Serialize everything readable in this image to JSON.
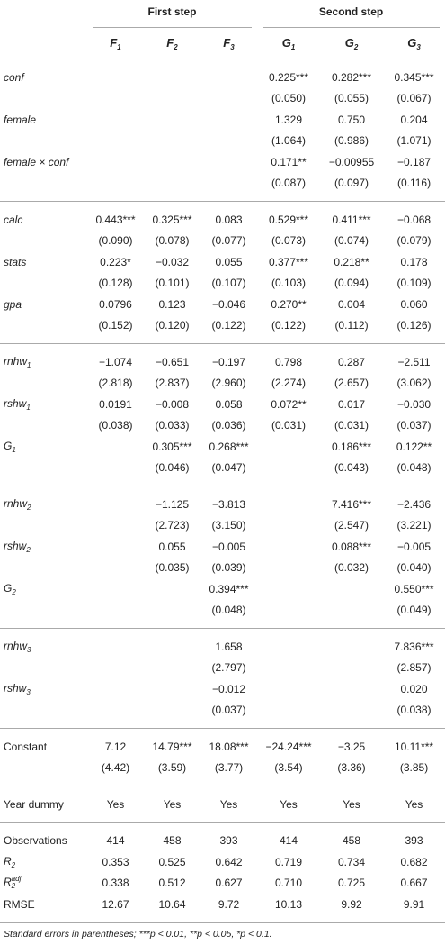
{
  "table": {
    "group_headers": [
      "First step",
      "Second step"
    ],
    "columns": [
      {
        "text": "F",
        "sub": "1"
      },
      {
        "text": "F",
        "sub": "2"
      },
      {
        "text": "F",
        "sub": "3"
      },
      {
        "text": "G",
        "sub": "1"
      },
      {
        "text": "G",
        "sub": "2"
      },
      {
        "text": "G",
        "sub": "3"
      }
    ],
    "sections": [
      {
        "rows": [
          {
            "label": {
              "text": "conf",
              "italic": true
            },
            "cells": [
              null,
              null,
              null,
              "0.225***",
              "0.282***",
              "0.345***"
            ]
          },
          {
            "label": null,
            "cells": [
              null,
              null,
              null,
              "(0.050)",
              "(0.055)",
              "(0.067)"
            ]
          },
          {
            "label": {
              "text": "female",
              "italic": true
            },
            "cells": [
              null,
              null,
              null,
              "1.329",
              "0.750",
              "0.204"
            ]
          },
          {
            "label": null,
            "cells": [
              null,
              null,
              null,
              "(1.064)",
              "(0.986)",
              "(1.071)"
            ]
          },
          {
            "label": {
              "text": "female × conf",
              "italic": true
            },
            "cells": [
              null,
              null,
              null,
              "0.171**",
              "−0.00955",
              "−0.187"
            ]
          },
          {
            "label": null,
            "cells": [
              null,
              null,
              null,
              "(0.087)",
              "(0.097)",
              "(0.116)"
            ]
          }
        ]
      },
      {
        "rows": [
          {
            "label": {
              "text": "calc",
              "italic": true
            },
            "cells": [
              "0.443***",
              "0.325***",
              "0.083",
              "0.529***",
              "0.411***",
              "−0.068"
            ]
          },
          {
            "label": null,
            "cells": [
              "(0.090)",
              "(0.078)",
              "(0.077)",
              "(0.073)",
              "(0.074)",
              "(0.079)"
            ]
          },
          {
            "label": {
              "text": "stats",
              "italic": true
            },
            "cells": [
              "0.223*",
              "−0.032",
              "0.055",
              "0.377***",
              "0.218**",
              "0.178"
            ]
          },
          {
            "label": null,
            "cells": [
              "(0.128)",
              "(0.101)",
              "(0.107)",
              "(0.103)",
              "(0.094)",
              "(0.109)"
            ]
          },
          {
            "label": {
              "text": "gpa",
              "italic": true
            },
            "cells": [
              "0.0796",
              "0.123",
              "−0.046",
              "0.270**",
              "0.004",
              "0.060"
            ]
          },
          {
            "label": null,
            "cells": [
              "(0.152)",
              "(0.120)",
              "(0.122)",
              "(0.122)",
              "(0.112)",
              "(0.126)"
            ]
          }
        ]
      },
      {
        "rows": [
          {
            "label": {
              "text": "rnhw",
              "sub": "1",
              "italic": true
            },
            "cells": [
              "−1.074",
              "−0.651",
              "−0.197",
              "0.798",
              "0.287",
              "−2.511"
            ]
          },
          {
            "label": null,
            "cells": [
              "(2.818)",
              "(2.837)",
              "(2.960)",
              "(2.274)",
              "(2.657)",
              "(3.062)"
            ]
          },
          {
            "label": {
              "text": "rshw",
              "sub": "1",
              "italic": true
            },
            "cells": [
              "0.0191",
              "−0.008",
              "0.058",
              "0.072**",
              "0.017",
              "−0.030"
            ]
          },
          {
            "label": null,
            "cells": [
              "(0.038)",
              "(0.033)",
              "(0.036)",
              "(0.031)",
              "(0.031)",
              "(0.037)"
            ]
          },
          {
            "label": {
              "text": "G",
              "sub": "1",
              "italic": true
            },
            "cells": [
              null,
              "0.305***",
              "0.268***",
              null,
              "0.186***",
              "0.122**"
            ]
          },
          {
            "label": null,
            "cells": [
              null,
              "(0.046)",
              "(0.047)",
              null,
              "(0.043)",
              "(0.048)"
            ]
          }
        ]
      },
      {
        "rows": [
          {
            "label": {
              "text": "rnhw",
              "sub": "2",
              "italic": true
            },
            "cells": [
              null,
              "−1.125",
              "−3.813",
              null,
              "7.416***",
              "−2.436"
            ]
          },
          {
            "label": null,
            "cells": [
              null,
              "(2.723)",
              "(3.150)",
              null,
              "(2.547)",
              "(3.221)"
            ]
          },
          {
            "label": {
              "text": "rshw",
              "sub": "2",
              "italic": true
            },
            "cells": [
              null,
              "0.055",
              "−0.005",
              null,
              "0.088***",
              "−0.005"
            ]
          },
          {
            "label": null,
            "cells": [
              null,
              "(0.035)",
              "(0.039)",
              null,
              "(0.032)",
              "(0.040)"
            ]
          },
          {
            "label": {
              "text": "G",
              "sub": "2",
              "italic": true
            },
            "cells": [
              null,
              null,
              "0.394***",
              null,
              null,
              "0.550***"
            ]
          },
          {
            "label": null,
            "cells": [
              null,
              null,
              "(0.048)",
              null,
              null,
              "(0.049)"
            ]
          }
        ]
      },
      {
        "rows": [
          {
            "label": {
              "text": "rnhw",
              "sub": "3",
              "italic": true
            },
            "cells": [
              null,
              null,
              "1.658",
              null,
              null,
              "7.836***"
            ]
          },
          {
            "label": null,
            "cells": [
              null,
              null,
              "(2.797)",
              null,
              null,
              "(2.857)"
            ]
          },
          {
            "label": {
              "text": "rshw",
              "sub": "3",
              "italic": true
            },
            "cells": [
              null,
              null,
              "−0.012",
              null,
              null,
              "0.020"
            ]
          },
          {
            "label": null,
            "cells": [
              null,
              null,
              "(0.037)",
              null,
              null,
              "(0.038)"
            ]
          }
        ]
      },
      {
        "rows": [
          {
            "label": {
              "text": "Constant"
            },
            "cells": [
              "7.12",
              "14.79***",
              "18.08***",
              "−24.24***",
              "−3.25",
              "10.11***"
            ]
          },
          {
            "label": null,
            "cells": [
              "(4.42)",
              "(3.59)",
              "(3.77)",
              "(3.54)",
              "(3.36)",
              "(3.85)"
            ]
          }
        ]
      },
      {
        "rows": [
          {
            "label": {
              "text": "Year dummy"
            },
            "cells": [
              "Yes",
              "Yes",
              "Yes",
              "Yes",
              "Yes",
              "Yes"
            ]
          }
        ]
      },
      {
        "rows": [
          {
            "label": {
              "text": "Observations"
            },
            "cells": [
              "414",
              "458",
              "393",
              "414",
              "458",
              "393"
            ]
          },
          {
            "label": {
              "text": "R",
              "sub": "2",
              "italic": true
            },
            "cells": [
              "0.353",
              "0.525",
              "0.642",
              "0.719",
              "0.734",
              "0.682"
            ]
          },
          {
            "label": {
              "text": "R",
              "sub": "2",
              "sup": "adj",
              "italic": true
            },
            "cells": [
              "0.338",
              "0.512",
              "0.627",
              "0.710",
              "0.725",
              "0.667"
            ]
          },
          {
            "label": {
              "text": "RMSE"
            },
            "cells": [
              "12.67",
              "10.64",
              "9.72",
              "10.13",
              "9.92",
              "9.91"
            ]
          }
        ]
      }
    ],
    "footnote": "Standard errors in parentheses; ***p < 0.01, **p < 0.05, *p < 0.1."
  }
}
